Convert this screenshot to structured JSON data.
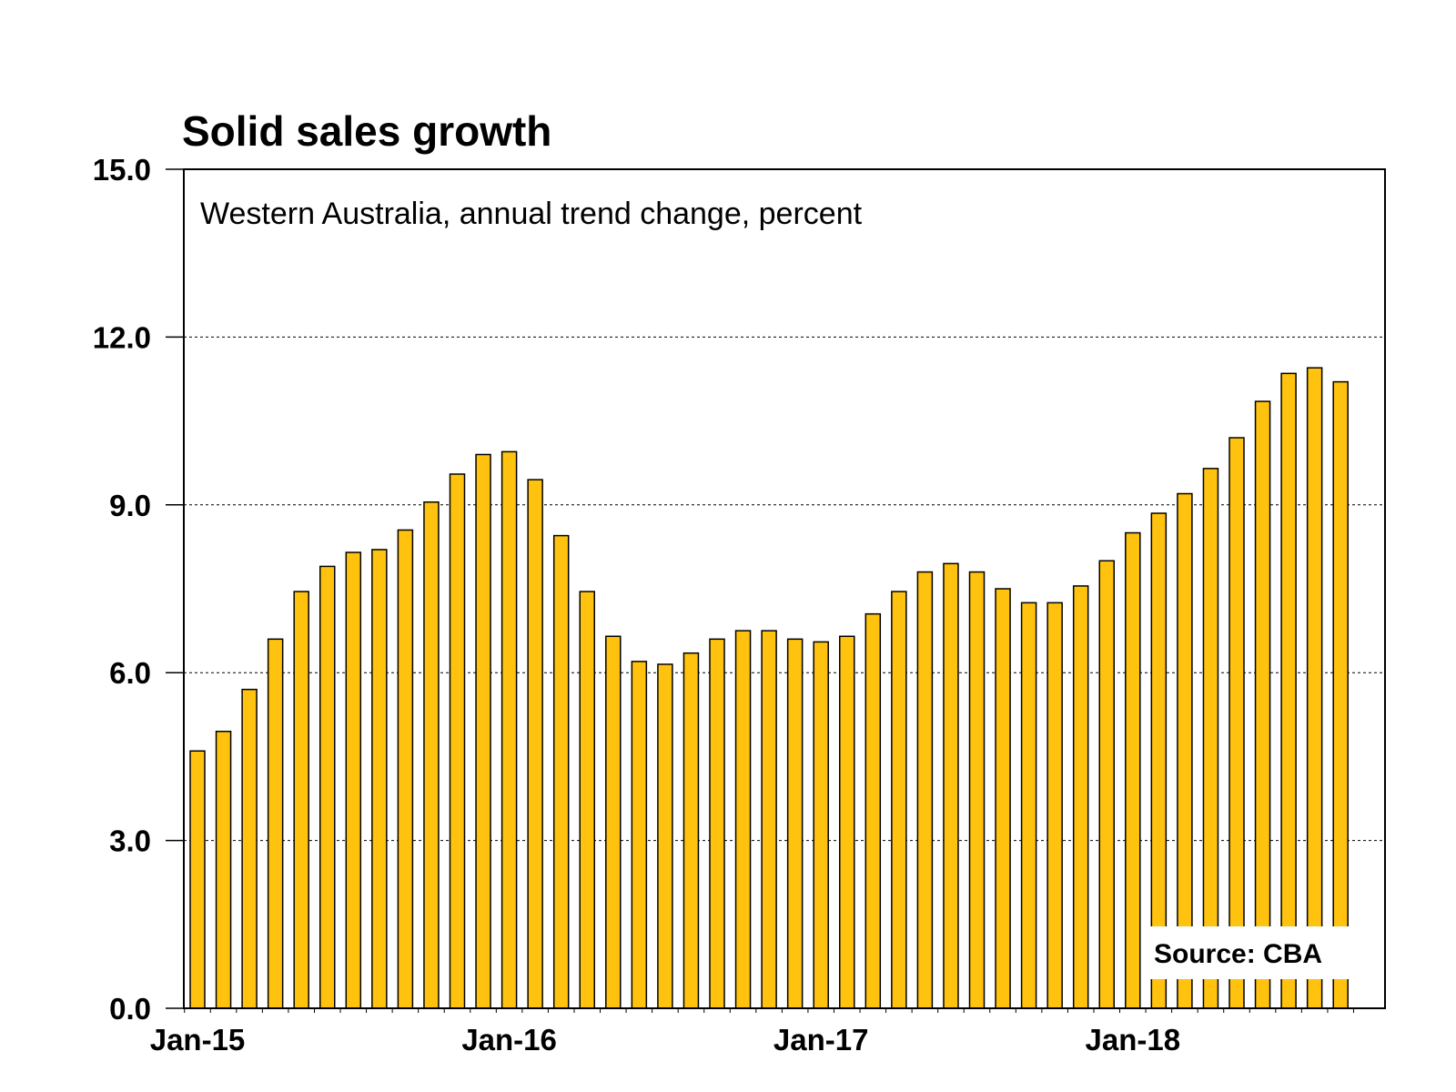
{
  "chart_data": {
    "type": "bar",
    "title": "Solid sales growth",
    "subtitle": "Western Australia, annual trend change, percent",
    "source": "Source: CBA",
    "xlabel": "",
    "ylabel": "",
    "ylim": [
      0,
      15
    ],
    "yticks": [
      "0.0",
      "3.0",
      "6.0",
      "9.0",
      "12.0",
      "15.0"
    ],
    "xticks": [
      {
        "label": "Jan-15",
        "index": 0
      },
      {
        "label": "Jan-16",
        "index": 12
      },
      {
        "label": "Jan-17",
        "index": 24
      },
      {
        "label": "Jan-18",
        "index": 36
      }
    ],
    "grid": true,
    "bar_color": "#FFC20E",
    "categories": [
      "Jan-15",
      "Feb-15",
      "Mar-15",
      "Apr-15",
      "May-15",
      "Jun-15",
      "Jul-15",
      "Aug-15",
      "Sep-15",
      "Oct-15",
      "Nov-15",
      "Dec-15",
      "Jan-16",
      "Feb-16",
      "Mar-16",
      "Apr-16",
      "May-16",
      "Jun-16",
      "Jul-16",
      "Aug-16",
      "Sep-16",
      "Oct-16",
      "Nov-16",
      "Dec-16",
      "Jan-17",
      "Feb-17",
      "Mar-17",
      "Apr-17",
      "May-17",
      "Jun-17",
      "Jul-17",
      "Aug-17",
      "Sep-17",
      "Oct-17",
      "Nov-17",
      "Dec-17",
      "Jan-18",
      "Feb-18",
      "Mar-18",
      "Apr-18",
      "May-18",
      "Jun-18",
      "Jul-18",
      "Aug-18",
      "Sep-18"
    ],
    "values": [
      4.6,
      4.95,
      5.7,
      6.6,
      7.45,
      7.9,
      8.15,
      8.2,
      8.55,
      9.05,
      9.55,
      9.9,
      9.95,
      9.45,
      8.45,
      7.45,
      6.65,
      6.2,
      6.15,
      6.35,
      6.6,
      6.75,
      6.75,
      6.6,
      6.55,
      6.65,
      7.05,
      7.45,
      7.8,
      7.95,
      7.8,
      7.5,
      7.25,
      7.25,
      7.55,
      8.0,
      8.5,
      8.85,
      9.2,
      9.65,
      10.2,
      10.85,
      11.35,
      11.45,
      11.2
    ]
  }
}
